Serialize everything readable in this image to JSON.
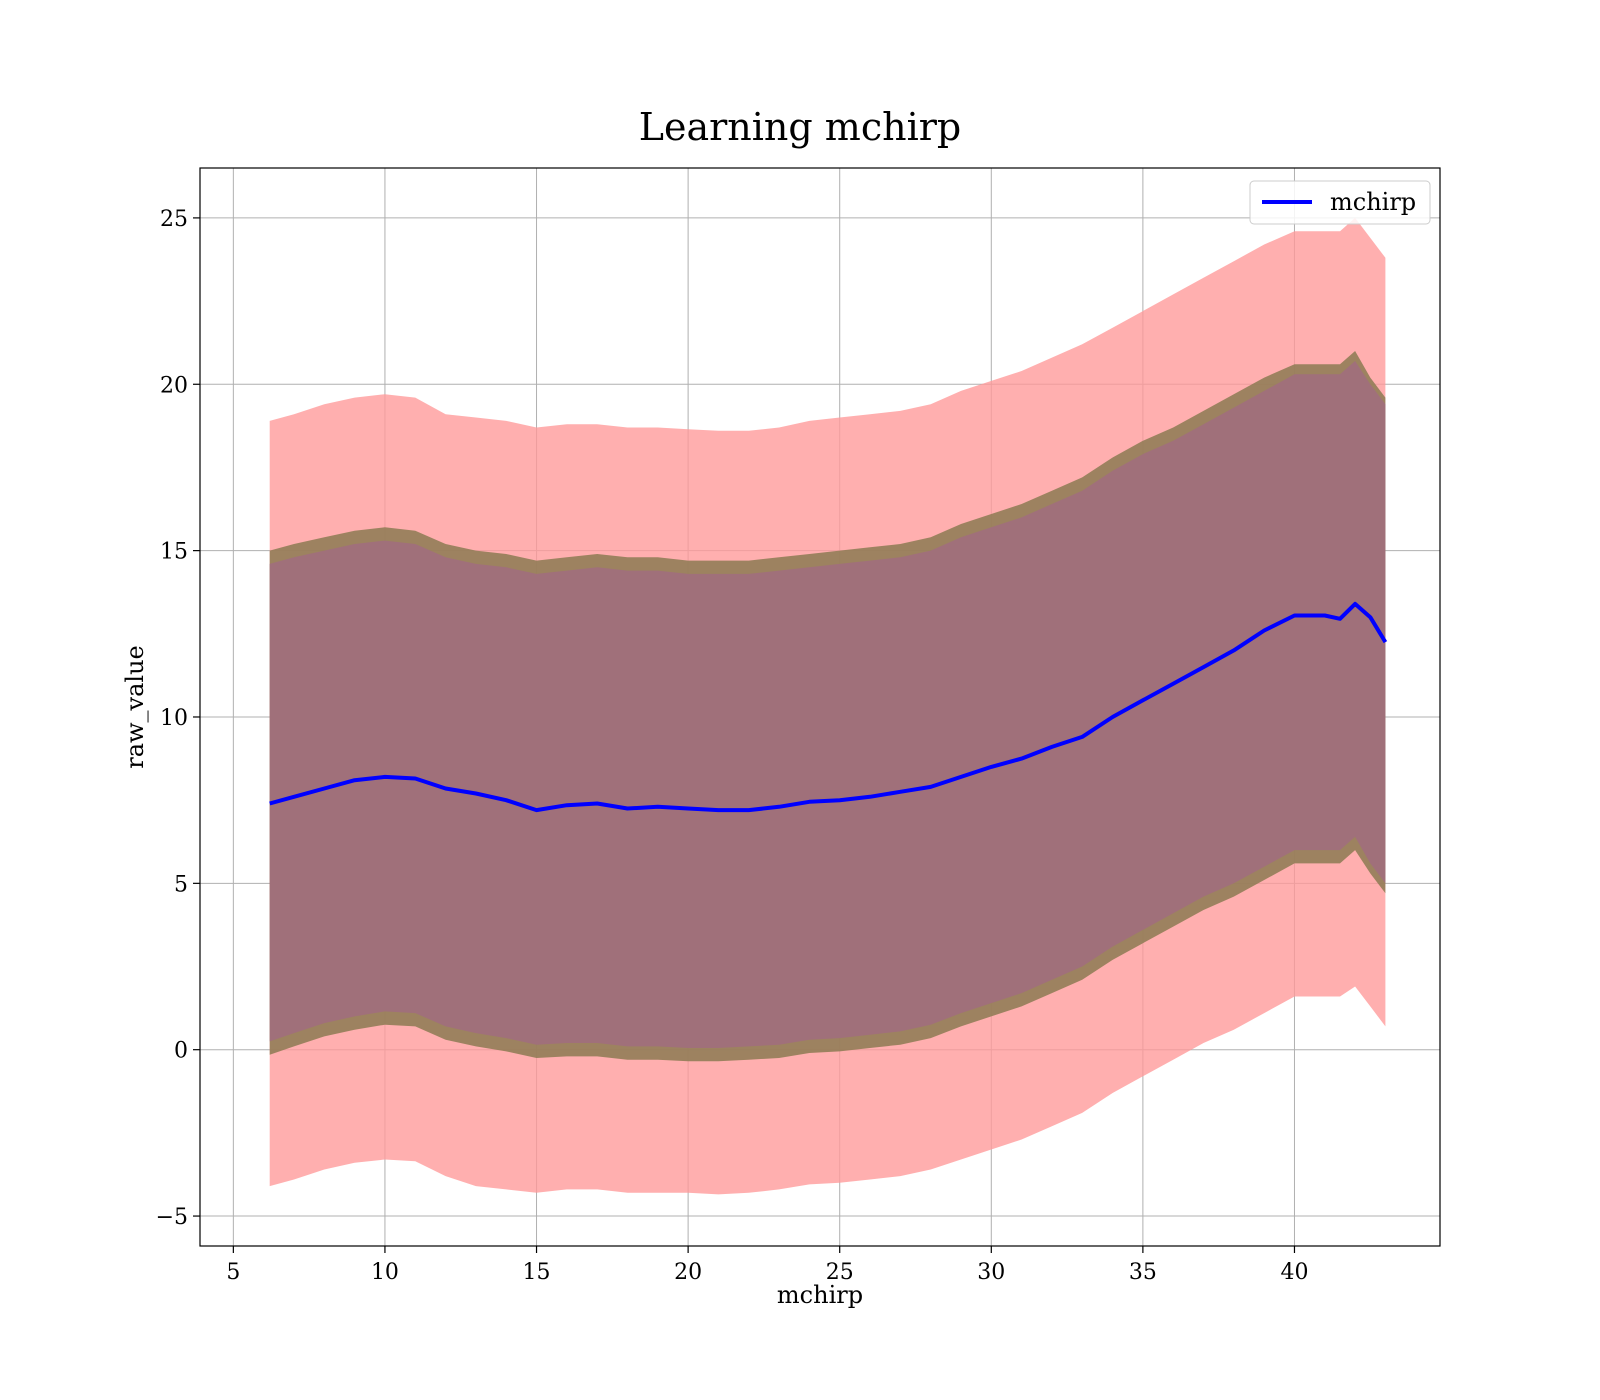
{
  "chart_data": {
    "type": "area",
    "title": "Learning mchirp",
    "xlabel": "mchirp",
    "ylabel": "raw_value",
    "xlim": [
      3.9,
      44.8
    ],
    "ylim": [
      -5.9,
      26.5
    ],
    "xticks": [
      5,
      10,
      15,
      20,
      25,
      30,
      35,
      40
    ],
    "yticks": [
      -5,
      0,
      5,
      10,
      15,
      20,
      25
    ],
    "xtick_labels": [
      "5",
      "10",
      "15",
      "20",
      "25",
      "30",
      "35",
      "40"
    ],
    "ytick_labels": [
      "−5",
      "0",
      "5",
      "10",
      "15",
      "20",
      "25"
    ],
    "grid": true,
    "legend": {
      "position": "top-right",
      "entries": [
        "mchirp"
      ]
    },
    "colors": {
      "line": "#0000ff",
      "outer_band": "#ff9999",
      "inner_band": "#8c7a52",
      "core_band": "#a0707a"
    },
    "x": [
      6.2,
      7,
      8,
      9,
      10,
      11,
      12,
      13,
      14,
      15,
      16,
      17,
      18,
      19,
      20,
      21,
      22,
      23,
      24,
      25,
      26,
      27,
      28,
      29,
      30,
      31,
      32,
      33,
      34,
      35,
      36,
      37,
      38,
      39,
      40,
      41,
      41.5,
      42,
      42.5,
      43
    ],
    "series": [
      {
        "name": "mchirp",
        "values": [
          7.4,
          7.6,
          7.85,
          8.1,
          8.2,
          8.15,
          7.85,
          7.7,
          7.5,
          7.2,
          7.35,
          7.4,
          7.25,
          7.3,
          7.25,
          7.2,
          7.2,
          7.3,
          7.45,
          7.5,
          7.6,
          7.75,
          7.9,
          8.2,
          8.5,
          8.75,
          9.1,
          9.4,
          10.0,
          10.5,
          11.0,
          11.5,
          12.0,
          12.6,
          13.05,
          13.05,
          12.95,
          13.4,
          13.0,
          12.25
        ]
      }
    ],
    "bands": [
      {
        "label": "outer",
        "upper": [
          18.9,
          19.1,
          19.4,
          19.6,
          19.7,
          19.6,
          19.1,
          19.0,
          18.9,
          18.7,
          18.8,
          18.8,
          18.7,
          18.7,
          18.65,
          18.6,
          18.6,
          18.7,
          18.9,
          19.0,
          19.1,
          19.2,
          19.4,
          19.8,
          20.1,
          20.4,
          20.8,
          21.2,
          21.7,
          22.2,
          22.7,
          23.2,
          23.7,
          24.2,
          24.6,
          24.6,
          24.6,
          25.0,
          24.4,
          23.8
        ],
        "lower": [
          -4.1,
          -3.9,
          -3.6,
          -3.4,
          -3.3,
          -3.35,
          -3.8,
          -4.1,
          -4.2,
          -4.3,
          -4.2,
          -4.2,
          -4.3,
          -4.3,
          -4.3,
          -4.35,
          -4.3,
          -4.2,
          -4.05,
          -4.0,
          -3.9,
          -3.8,
          -3.6,
          -3.3,
          -3.0,
          -2.7,
          -2.3,
          -1.9,
          -1.3,
          -0.8,
          -0.3,
          0.2,
          0.6,
          1.1,
          1.6,
          1.6,
          1.6,
          1.9,
          1.3,
          0.7
        ]
      },
      {
        "label": "inner",
        "upper": [
          15.0,
          15.2,
          15.4,
          15.6,
          15.7,
          15.6,
          15.2,
          15.0,
          14.9,
          14.7,
          14.8,
          14.9,
          14.8,
          14.8,
          14.7,
          14.7,
          14.7,
          14.8,
          14.9,
          15.0,
          15.1,
          15.2,
          15.4,
          15.8,
          16.1,
          16.4,
          16.8,
          17.2,
          17.8,
          18.3,
          18.7,
          19.2,
          19.7,
          20.2,
          20.6,
          20.6,
          20.6,
          21.0,
          20.2,
          19.6
        ],
        "lower": [
          -0.15,
          0.1,
          0.4,
          0.6,
          0.75,
          0.7,
          0.3,
          0.1,
          -0.05,
          -0.25,
          -0.2,
          -0.2,
          -0.3,
          -0.3,
          -0.35,
          -0.35,
          -0.3,
          -0.25,
          -0.1,
          -0.05,
          0.05,
          0.15,
          0.35,
          0.7,
          1.0,
          1.3,
          1.7,
          2.1,
          2.7,
          3.2,
          3.7,
          4.2,
          4.6,
          5.1,
          5.6,
          5.6,
          5.6,
          6.0,
          5.3,
          4.7
        ]
      },
      {
        "label": "core",
        "upper": [
          14.6,
          14.8,
          15.0,
          15.2,
          15.3,
          15.2,
          14.8,
          14.6,
          14.5,
          14.3,
          14.4,
          14.5,
          14.4,
          14.4,
          14.3,
          14.3,
          14.3,
          14.4,
          14.5,
          14.6,
          14.7,
          14.8,
          15.0,
          15.4,
          15.7,
          16.0,
          16.4,
          16.8,
          17.4,
          17.9,
          18.3,
          18.8,
          19.3,
          19.8,
          20.3,
          20.3,
          20.3,
          20.7,
          20.0,
          19.4
        ],
        "lower": [
          0.25,
          0.5,
          0.8,
          1.0,
          1.15,
          1.1,
          0.7,
          0.5,
          0.35,
          0.15,
          0.2,
          0.2,
          0.1,
          0.1,
          0.05,
          0.05,
          0.1,
          0.15,
          0.3,
          0.35,
          0.45,
          0.55,
          0.75,
          1.1,
          1.4,
          1.7,
          2.1,
          2.5,
          3.1,
          3.6,
          4.1,
          4.6,
          5.0,
          5.5,
          6.0,
          6.0,
          6.0,
          6.4,
          5.6,
          5.0
        ]
      }
    ]
  }
}
